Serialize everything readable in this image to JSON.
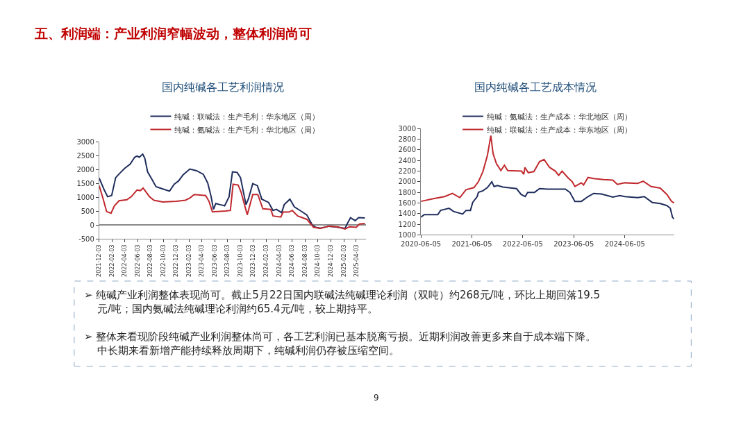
{
  "chart_data": [
    {
      "type": "line",
      "title": "国内纯碱各工艺利润情况",
      "legend": "top",
      "xlim": [
        "2021-12-03",
        "2025-05-20"
      ],
      "ylim": [
        -500,
        3000
      ],
      "xticks": [
        "2021-12-03",
        "2022-02-03",
        "2022-04-03",
        "2022-06-03",
        "2022-08-03",
        "2022-10-03",
        "2022-12-03",
        "2023-02-03",
        "2023-04-03",
        "2023-06-03",
        "2023-08-03",
        "2023-10-03",
        "2023-12-03",
        "2024-02-03",
        "2024-04-03",
        "2024-06-03",
        "2024-08-03",
        "2024-10-03",
        "2024-12-03",
        "2025-02-03",
        "2025-04-03"
      ],
      "yticks": [
        -500,
        0,
        500,
        1000,
        1500,
        2000,
        2500,
        3000
      ],
      "series": [
        {
          "name": "纯碱：联碱法：生产毛利：华东地区（周）",
          "color": "#1f2d5c",
          "x": [
            "2021-12-03",
            "2021-12-27",
            "2022-01-12",
            "2022-01-31",
            "2022-02-19",
            "2022-03-12",
            "2022-04-02",
            "2022-04-29",
            "2022-05-20",
            "2022-05-31",
            "2022-06-11",
            "2022-06-27",
            "2022-07-07",
            "2022-07-20",
            "2022-08-08",
            "2022-08-29",
            "2022-09-30",
            "2022-11-01",
            "2022-11-23",
            "2022-12-14",
            "2023-01-04",
            "2023-02-05",
            "2023-03-09",
            "2023-04-10",
            "2023-05-01",
            "2023-05-17",
            "2023-05-28",
            "2023-06-08",
            "2023-06-29",
            "2023-07-20",
            "2023-08-10",
            "2023-08-26",
            "2023-09-17",
            "2023-10-03",
            "2023-10-29",
            "2023-11-09",
            "2023-11-30",
            "2023-12-22",
            "2024-01-12",
            "2024-02-13",
            "2024-03-05",
            "2024-03-21",
            "2024-04-15",
            "2024-04-27",
            "2024-05-24",
            "2024-06-14",
            "2024-07-11",
            "2024-08-12",
            "2024-09-07",
            "2024-09-23",
            "2024-10-15",
            "2024-11-26",
            "2025-01-08",
            "2025-02-09",
            "2025-02-19",
            "2025-03-07",
            "2025-03-29",
            "2025-04-14",
            "2025-05-14"
          ],
          "values": [
            1700,
            1270,
            1030,
            1070,
            1720,
            1890,
            2050,
            2210,
            2460,
            2500,
            2460,
            2570,
            2420,
            1930,
            1680,
            1390,
            1310,
            1230,
            1480,
            1600,
            1820,
            2030,
            1970,
            1840,
            1520,
            1030,
            570,
            780,
            740,
            700,
            1030,
            1930,
            1910,
            1720,
            740,
            940,
            1500,
            1430,
            940,
            820,
            530,
            570,
            450,
            740,
            940,
            660,
            530,
            370,
            0,
            -80,
            -110,
            -40,
            -80,
            -120,
            40,
            270,
            160,
            270,
            260
          ]
        },
        {
          "name": "纯碱：氨碱法：生产毛利：华北地区（周）",
          "color": "#c0282d",
          "x": [
            "2021-12-03",
            "2021-12-22",
            "2022-01-07",
            "2022-01-28",
            "2022-02-13",
            "2022-03-07",
            "2022-04-13",
            "2022-05-04",
            "2022-05-31",
            "2022-06-16",
            "2022-06-29",
            "2022-07-28",
            "2022-08-19",
            "2022-09-30",
            "2022-12-03",
            "2023-01-15",
            "2023-02-05",
            "2023-02-26",
            "2023-04-21",
            "2023-05-07",
            "2023-05-23",
            "2023-07-25",
            "2023-08-16",
            "2023-08-29",
            "2023-09-22",
            "2023-10-06",
            "2023-11-04",
            "2023-11-30",
            "2023-12-24",
            "2024-01-17",
            "2024-02-23",
            "2024-03-05",
            "2024-04-11",
            "2024-04-22",
            "2024-05-19",
            "2024-06-04",
            "2024-06-30",
            "2024-08-12",
            "2024-09-13",
            "2024-10-15",
            "2024-11-26",
            "2025-01-08",
            "2025-02-09",
            "2025-03-02",
            "2025-04-03",
            "2025-04-19",
            "2025-05-14"
          ],
          "values": [
            1430,
            940,
            490,
            430,
            700,
            880,
            920,
            1030,
            1270,
            1250,
            1340,
            1040,
            900,
            840,
            860,
            900,
            980,
            1110,
            1070,
            860,
            480,
            510,
            530,
            1480,
            1450,
            1190,
            370,
            1110,
            1110,
            590,
            570,
            330,
            290,
            470,
            470,
            530,
            330,
            210,
            -80,
            -120,
            -40,
            -70,
            -140,
            -60,
            -80,
            40,
            60
          ]
        }
      ]
    },
    {
      "type": "line",
      "title": "国内纯碱各工艺成本情况",
      "legend": "top",
      "xlim": [
        "2020-06-05",
        "2025-05-25"
      ],
      "ylim": [
        1000,
        3000
      ],
      "xticks": [
        "2020-06-05",
        "2021-06-05",
        "2022-06-05",
        "2023-06-05",
        "2024-06-05"
      ],
      "yticks": [
        1000,
        1200,
        1400,
        1600,
        1800,
        2000,
        2200,
        2400,
        2600,
        2800,
        3000
      ],
      "series": [
        {
          "name": "纯碱：氨碱法：生产成本：华北地区（周）",
          "color": "#1f2d5c",
          "x": [
            "2020-06-05",
            "2020-06-29",
            "2020-10-04",
            "2020-10-24",
            "2020-12-24",
            "2021-01-25",
            "2021-03-31",
            "2021-04-24",
            "2021-05-26",
            "2021-06-11",
            "2021-07-13",
            "2021-07-22",
            "2021-08-23",
            "2021-09-24",
            "2021-10-26",
            "2021-11-11",
            "2021-12-05",
            "2022-01-14",
            "2022-04-21",
            "2022-05-24",
            "2022-06-22",
            "2022-07-10",
            "2022-08-28",
            "2022-10-03",
            "2022-11-28",
            "2023-04-06",
            "2023-05-08",
            "2023-06-13",
            "2023-07-29",
            "2023-09-15",
            "2023-10-25",
            "2023-12-20",
            "2024-03-11",
            "2024-04-29",
            "2024-06-05",
            "2024-09-04",
            "2024-10-22",
            "2024-12-18",
            "2025-02-13",
            "2025-04-02",
            "2025-04-26",
            "2025-05-12",
            "2025-05-23"
          ],
          "values": [
            1330,
            1380,
            1380,
            1460,
            1500,
            1440,
            1390,
            1460,
            1460,
            1610,
            1720,
            1800,
            1830,
            1890,
            2000,
            1910,
            1930,
            1900,
            1870,
            1760,
            1720,
            1800,
            1800,
            1870,
            1860,
            1860,
            1800,
            1630,
            1630,
            1720,
            1780,
            1770,
            1710,
            1740,
            1720,
            1700,
            1720,
            1610,
            1590,
            1550,
            1500,
            1330,
            1300
          ]
        },
        {
          "name": "纯碱：联碱法：生产成本：华东地区（周）",
          "color": "#c0282d",
          "x": [
            "2020-06-05",
            "2020-09-02",
            "2020-11-22",
            "2021-01-17",
            "2021-03-11",
            "2021-04-24",
            "2021-06-20",
            "2021-07-22",
            "2021-08-23",
            "2021-09-24",
            "2021-10-19",
            "2021-11-04",
            "2021-11-28",
            "2021-12-30",
            "2022-01-24",
            "2022-02-17",
            "2022-05-27",
            "2022-06-12",
            "2022-06-20",
            "2022-07-14",
            "2022-08-23",
            "2022-10-03",
            "2022-11-04",
            "2022-12-14",
            "2023-01-24",
            "2023-02-17",
            "2023-03-13",
            "2023-04-23",
            "2023-05-25",
            "2023-06-13",
            "2023-07-29",
            "2023-08-14",
            "2023-09-15",
            "2023-10-25",
            "2024-01-06",
            "2024-03-11",
            "2024-04-12",
            "2024-06-05",
            "2024-09-04",
            "2024-10-15",
            "2024-12-10",
            "2025-02-13",
            "2025-04-02",
            "2025-05-05",
            "2025-05-23"
          ],
          "values": [
            1630,
            1680,
            1720,
            1780,
            1700,
            1850,
            1890,
            2000,
            2190,
            2490,
            2870,
            2530,
            2340,
            2210,
            2310,
            2210,
            2200,
            2140,
            2270,
            2170,
            2190,
            2380,
            2420,
            2270,
            2200,
            2120,
            2200,
            2080,
            2000,
            1910,
            1980,
            1940,
            2080,
            2060,
            2040,
            2030,
            1950,
            1980,
            1970,
            2010,
            1910,
            1880,
            1760,
            1630,
            1600
          ]
        }
      ]
    },
    {
      "type": "other",
      "title": "五、利润端：产业利润窄幅波动，整体利润尚可",
      "annotations": [
        "➢ 纯碱产业利润整体表现尚可。截止5月22日国内联碱法纯碱理论利润（双吨）约268元/吨，环比上期回落19.5元/吨；国内氨碱法纯碱理论利润约65.4元/吨，较上期持平。",
        "➢ 整体来看现阶段纯碱产业利润整体尚可，各工艺利润已基本脱离亏损。近期利润改善更多来自于成本端下降。中长期来看新增产能持续释放周期下，纯碱利润仍存被压缩空间。",
        "9"
      ]
    }
  ]
}
